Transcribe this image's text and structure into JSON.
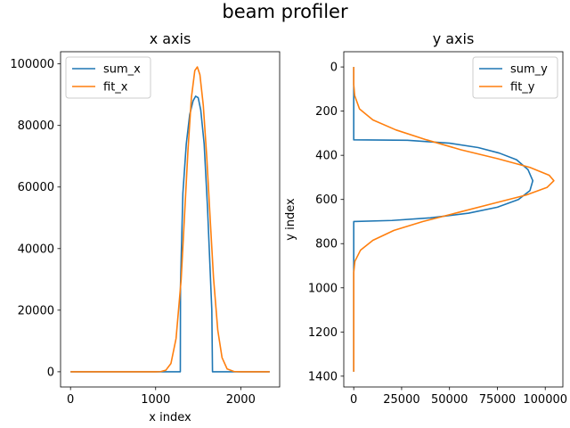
{
  "figure": {
    "title": "beam profiler"
  },
  "chart_data": [
    {
      "type": "line",
      "title": "x axis",
      "xlabel": "x index",
      "ylabel": "",
      "xlim": [
        -117,
        2457
      ],
      "ylim": [
        -4950,
        103950
      ],
      "x_ticks": [
        0,
        1000,
        2000
      ],
      "y_ticks": [
        0,
        20000,
        40000,
        60000,
        80000,
        100000
      ],
      "legend": "top-left",
      "series": [
        {
          "name": "sum_x",
          "color": "#1f77b4",
          "points": [
            [
              0,
              0
            ],
            [
              1290,
              0
            ],
            [
              1292,
              28000
            ],
            [
              1320,
              58000
            ],
            [
              1360,
              74000
            ],
            [
              1400,
              83500
            ],
            [
              1440,
              88000
            ],
            [
              1470,
              89500
            ],
            [
              1500,
              89000
            ],
            [
              1530,
              85000
            ],
            [
              1570,
              74000
            ],
            [
              1610,
              53000
            ],
            [
              1660,
              20000
            ],
            [
              1668,
              0
            ],
            [
              2340,
              0
            ]
          ]
        },
        {
          "name": "fit_x",
          "color": "#ff7f0e",
          "points": [
            [
              0,
              0
            ],
            [
              1000,
              0
            ],
            [
              1060,
              50
            ],
            [
              1120,
              500
            ],
            [
              1180,
              2700
            ],
            [
              1240,
              10800
            ],
            [
              1300,
              30000
            ],
            [
              1340,
              51000
            ],
            [
              1380,
              72000
            ],
            [
              1420,
              89000
            ],
            [
              1460,
              97800
            ],
            [
              1490,
              99000
            ],
            [
              1520,
              96500
            ],
            [
              1560,
              86500
            ],
            [
              1600,
              70000
            ],
            [
              1640,
              50000
            ],
            [
              1680,
              30500
            ],
            [
              1730,
              13500
            ],
            [
              1780,
              4600
            ],
            [
              1840,
              900
            ],
            [
              1920,
              80
            ],
            [
              2000,
              0
            ],
            [
              2340,
              0
            ]
          ]
        }
      ]
    },
    {
      "type": "line",
      "title": "y axis",
      "xlabel": "",
      "ylabel": "y index",
      "xlim": [
        -5200,
        109200
      ],
      "ylim": [
        1449,
        -69
      ],
      "y_inverted": true,
      "x_ticks": [
        0,
        25000,
        50000,
        75000,
        100000
      ],
      "y_ticks": [
        0,
        200,
        400,
        600,
        800,
        1000,
        1200,
        1400
      ],
      "legend": "top-right",
      "series": [
        {
          "name": "sum_y",
          "color": "#1f77b4",
          "points": [
            [
              0,
              0
            ],
            [
              0,
              330
            ],
            [
              28000,
              332
            ],
            [
              50000,
              345
            ],
            [
              65000,
              365
            ],
            [
              76000,
              390
            ],
            [
              85000,
              420
            ],
            [
              91000,
              465
            ],
            [
              93500,
              515
            ],
            [
              92000,
              560
            ],
            [
              86000,
              600
            ],
            [
              75000,
              635
            ],
            [
              60000,
              662
            ],
            [
              40000,
              683
            ],
            [
              20000,
              695
            ],
            [
              0,
              700
            ],
            [
              0,
              1380
            ]
          ]
        },
        {
          "name": "fit_y",
          "color": "#ff7f0e",
          "points": [
            [
              0,
              0
            ],
            [
              0,
              80
            ],
            [
              500,
              130
            ],
            [
              3000,
              190
            ],
            [
              10000,
              240
            ],
            [
              22000,
              285
            ],
            [
              38000,
              330
            ],
            [
              56000,
              375
            ],
            [
              75000,
              415
            ],
            [
              92000,
              455
            ],
            [
              102000,
              490
            ],
            [
              104500,
              515
            ],
            [
              101000,
              545
            ],
            [
              90000,
              580
            ],
            [
              72000,
              620
            ],
            [
              54000,
              660
            ],
            [
              36000,
              700
            ],
            [
              21000,
              740
            ],
            [
              10000,
              785
            ],
            [
              3500,
              830
            ],
            [
              600,
              880
            ],
            [
              0,
              930
            ],
            [
              0,
              1380
            ]
          ]
        }
      ]
    }
  ]
}
